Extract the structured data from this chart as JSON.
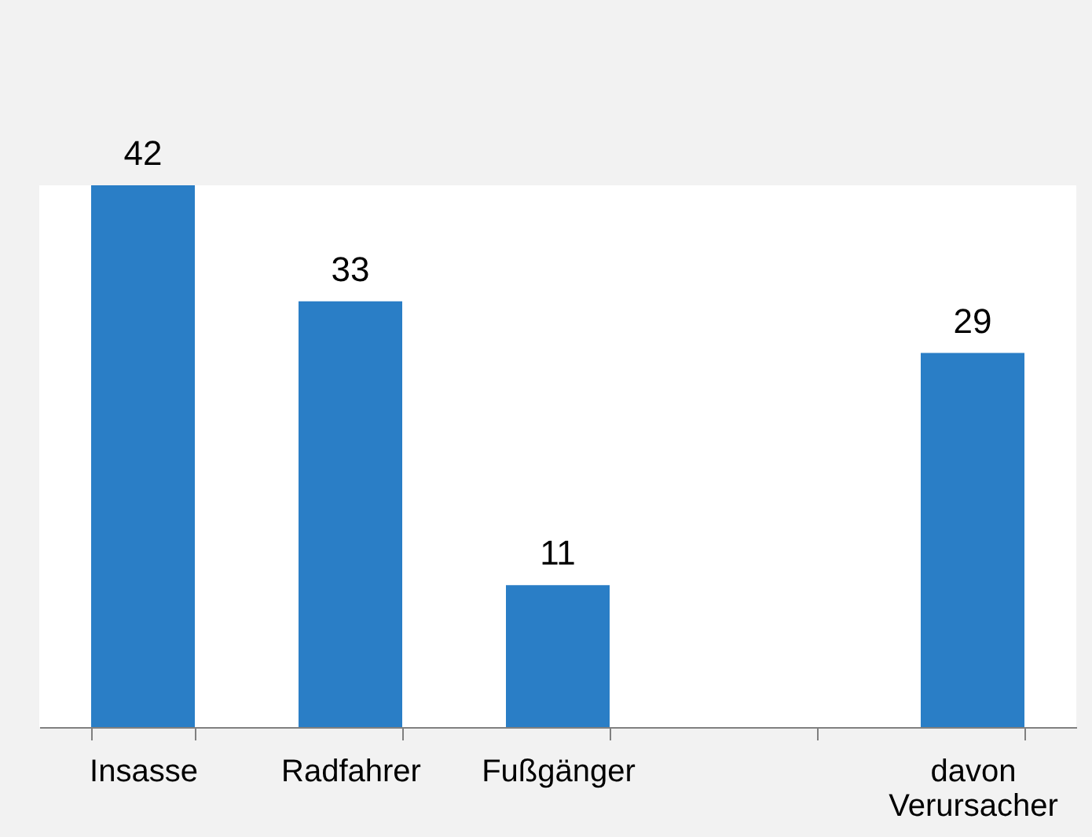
{
  "chart_data": {
    "type": "bar",
    "categories": [
      "Insasse",
      "Radfahrer",
      "Fußgänger",
      null,
      "davon Verursacher"
    ],
    "values": [
      42,
      33,
      11,
      null,
      29
    ],
    "color": "#2a7ec6",
    "data_labels": true,
    "grid": false
  }
}
